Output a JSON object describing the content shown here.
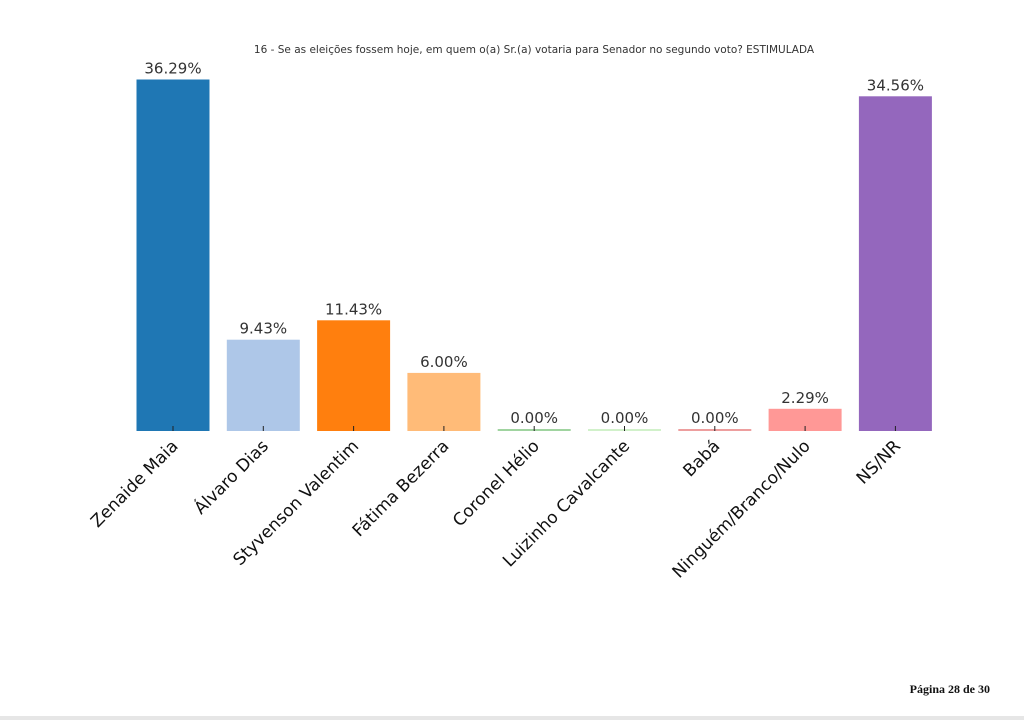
{
  "chart_data": {
    "type": "bar",
    "title": "16 - Se as eleições fossem hoje, em quem o(a) Sr.(a) votaria para Senador no segundo voto? ESTIMULADA",
    "xlabel": "",
    "ylabel": "",
    "ylim": [
      0,
      38.1
    ],
    "grid": false,
    "categories": [
      "Zenaide Maia",
      "Álvaro Dias",
      "Styvenson Valentim",
      "Fátima Bezerra",
      "Coronel Hélio",
      "Luizinho Cavalcante",
      "Babá",
      "Ninguém/Branco/Nulo",
      "NS/NR"
    ],
    "values": [
      36.29,
      9.43,
      11.43,
      6.0,
      0.0,
      0.0,
      0.0,
      2.29,
      34.56
    ],
    "labels": [
      "36.29%",
      "9.43%",
      "11.43%",
      "6.00%",
      "0.00%",
      "0.00%",
      "0.00%",
      "2.29%",
      "34.56%"
    ],
    "colors": [
      "#1f77b4",
      "#aec7e8",
      "#ff7f0e",
      "#ffbb78",
      "#2ca02c",
      "#98df8a",
      "#d62728",
      "#ff9896",
      "#9467bd"
    ]
  },
  "footer": {
    "page_label": "Página 28 de 30"
  }
}
